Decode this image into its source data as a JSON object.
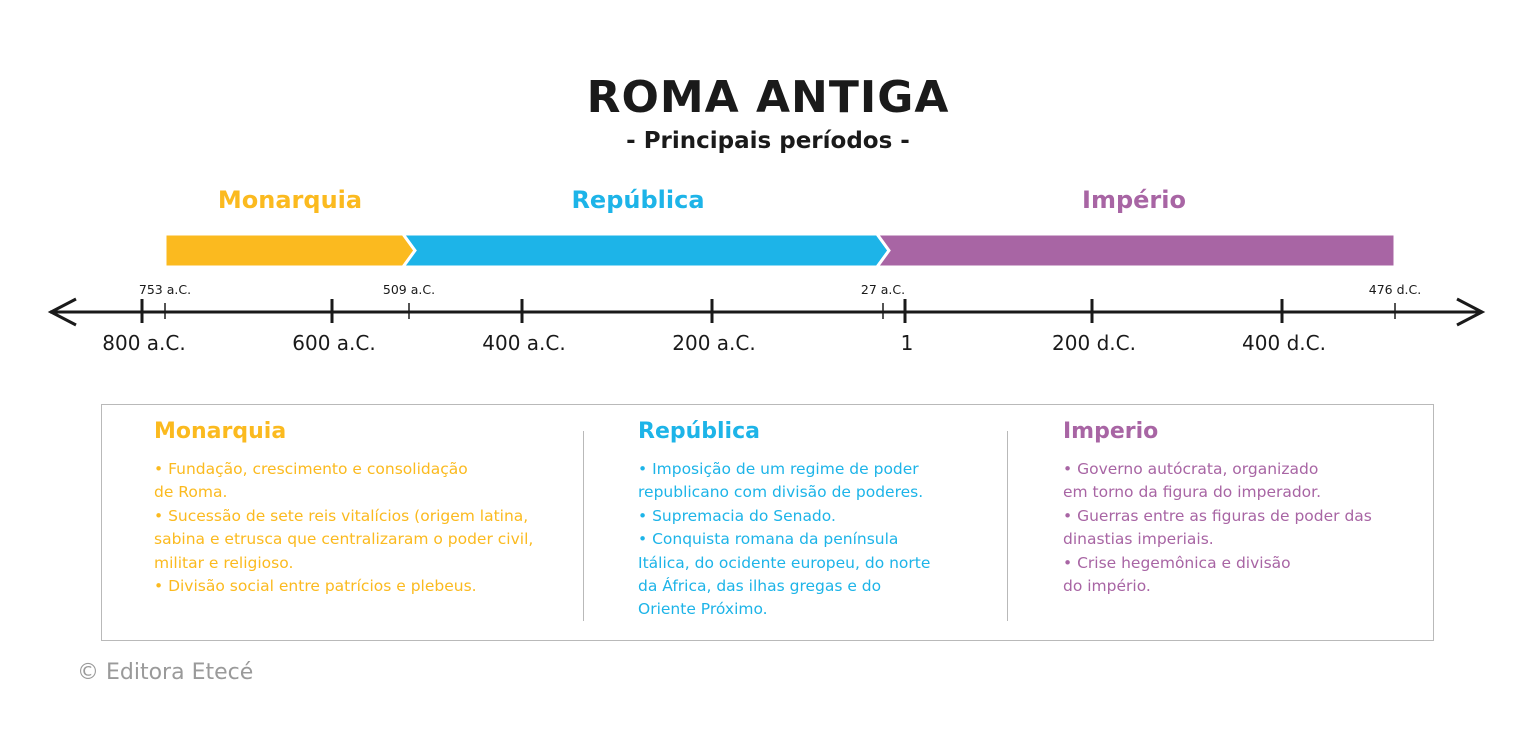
{
  "title": "ROMA ANTIGA",
  "subtitle": "- Principais períodos -",
  "colors": {
    "monarquia": "#FBBA1F",
    "republica": "#1DB4E8",
    "imperio": "#A865A4",
    "axis": "#1a1a1a"
  },
  "periods": [
    {
      "label": "Monarquia",
      "start_label": "753 a.C.",
      "start_year": -753,
      "end_year": -509
    },
    {
      "label": "República",
      "start_label": "509 a.C.",
      "start_year": -509,
      "end_year": -27
    },
    {
      "label": "Império",
      "start_label": "27 a.C.",
      "start_year": -27,
      "end_year": 476,
      "end_label": "476 d.C."
    }
  ],
  "axis": {
    "ticks": [
      {
        "year": -800,
        "label": "800 a.C."
      },
      {
        "year": -600,
        "label": "600 a.C."
      },
      {
        "year": -400,
        "label": "400 a.C."
      },
      {
        "year": -200,
        "label": "200 a.C."
      },
      {
        "year": 1,
        "label": "1"
      },
      {
        "year": 200,
        "label": "200 d.C."
      },
      {
        "year": 400,
        "label": "400 d.C."
      }
    ]
  },
  "info": {
    "monarquia": {
      "heading": "Monarquia",
      "items": [
        "• Fundação, crescimento e consolidação\nde Roma.",
        "• Sucessão de sete reis vitalícios (origem latina,\nsabina e etrusca que centralizaram o poder civil,\nmilitar e religioso.",
        "• Divisão social entre patrícios e plebeus."
      ]
    },
    "republica": {
      "heading": "República",
      "items": [
        "• Imposição de um regime de poder\nrepublicano com divisão de poderes.",
        "• Supremacia do Senado.",
        "• Conquista romana da península\nItálica, do ocidente europeu, do norte\nda África, das ilhas gregas e do\nOriente Próximo."
      ]
    },
    "imperio": {
      "heading": "Imperio",
      "items": [
        "• Governo autócrata, organizado\nem torno da figura do imperador.",
        "• Guerras entre as figuras de poder das\ndinastias imperiais.",
        "• Crise hegemônica e divisão\ndo império."
      ]
    }
  },
  "copyright": "© Editora Etecé"
}
